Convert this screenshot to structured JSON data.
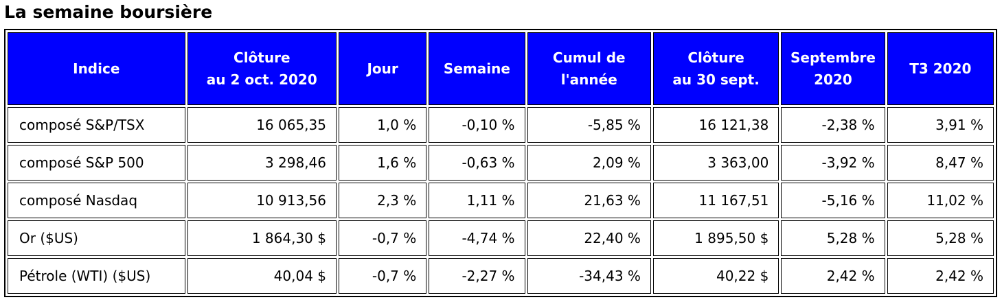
{
  "title": "La semaine boursière",
  "table": {
    "headers": [
      {
        "line1": "Indice",
        "line2": ""
      },
      {
        "line1": "Clôture",
        "line2": "au 2 oct. 2020"
      },
      {
        "line1": "Jour",
        "line2": ""
      },
      {
        "line1": "Semaine",
        "line2": ""
      },
      {
        "line1": "Cumul de",
        "line2": "l'année"
      },
      {
        "line1": "Clôture",
        "line2": "au 30 sept."
      },
      {
        "line1": "Septembre",
        "line2": "2020"
      },
      {
        "line1": "T3 2020",
        "line2": ""
      }
    ],
    "rows": [
      [
        "composé S&P/TSX",
        "16 065,35",
        "1,0 %",
        "-0,10 %",
        "-5,85 %",
        "16 121,38",
        "-2,38 %",
        "3,91 %"
      ],
      [
        "composé S&P 500",
        "3 298,46",
        "1,6 %",
        "-0,63 %",
        "2,09 %",
        "3 363,00",
        "-3,92 %",
        "8,47 %"
      ],
      [
        "composé Nasdaq",
        "10 913,56",
        "2,3 %",
        "1,11 %",
        "21,63 %",
        "11 167,51",
        "-5,16 %",
        "11,02 %"
      ],
      [
        "Or ($US)",
        "1 864,30 $",
        "-0,7 %",
        "-4,74 %",
        "22,40 %",
        "1 895,50 $",
        "5,28 %",
        "5,28 %"
      ],
      [
        "Pétrole (WTI) ($US)",
        "40,04 $",
        "-0,7 %",
        "-2,27 %",
        "-34,43 %",
        "40,22 $",
        "2,42 %",
        "2,42 %"
      ]
    ]
  },
  "colors": {
    "header_bg": "#0000ff",
    "header_text": "#ffffff",
    "border": "#000000"
  }
}
